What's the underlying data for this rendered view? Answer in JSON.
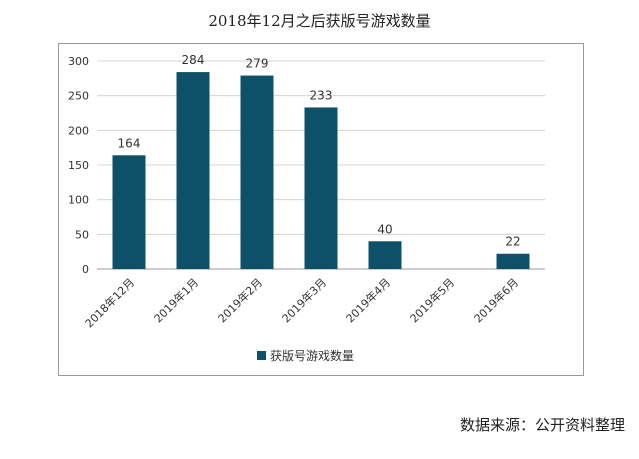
{
  "source_note": "数据来源：公开资料整理",
  "chart_data": {
    "type": "bar",
    "title": "2018年12月之后获版号游戏数量",
    "categories": [
      "2018年12月",
      "2019年1月",
      "2019年2月",
      "2019年3月",
      "2019年4月",
      "2019年5月",
      "2019年6月"
    ],
    "series": [
      {
        "name": "获版号游戏数量",
        "values": [
          164,
          284,
          279,
          233,
          40,
          null,
          22
        ],
        "color": "#0d5068"
      }
    ],
    "data_labels": [
      "164",
      "284",
      "279",
      "233",
      "40",
      "",
      "22"
    ],
    "xlabel": "",
    "ylabel": "",
    "ylim": [
      0,
      300
    ],
    "yticks": [
      0,
      50,
      100,
      150,
      200,
      250,
      300
    ],
    "grid": true,
    "legend_position": "bottom"
  }
}
